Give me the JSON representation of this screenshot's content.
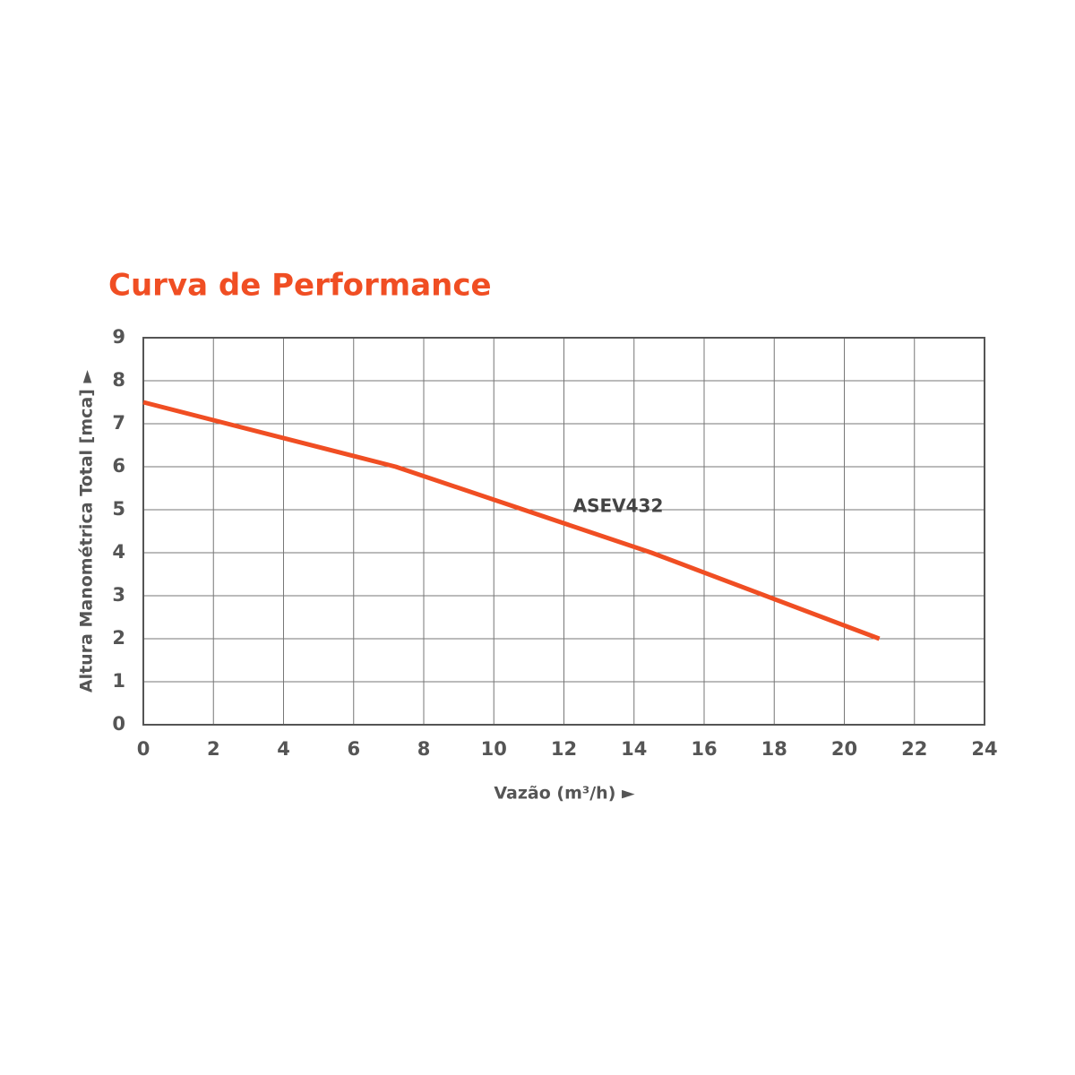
{
  "chart_data": {
    "type": "line",
    "title": "Curva de Performance",
    "x_label": "Vazão (m³/h) ►",
    "y_label": "Altura Manométrica Total [mca] ►",
    "series": [
      {
        "name": "ASEV432",
        "color": "#f04e23",
        "x": [
          0,
          7.2,
          14.5,
          21
        ],
        "values": [
          7.5,
          6.0,
          4.0,
          2.0
        ]
      }
    ],
    "xlim": [
      0,
      24
    ],
    "xticks": [
      0,
      2,
      4,
      6,
      8,
      10,
      12,
      14,
      16,
      18,
      20,
      22,
      24
    ],
    "ylim": [
      0,
      9
    ],
    "yticks": [
      0,
      1,
      2,
      3,
      4,
      5,
      6,
      7,
      8,
      9
    ],
    "grid": true
  }
}
